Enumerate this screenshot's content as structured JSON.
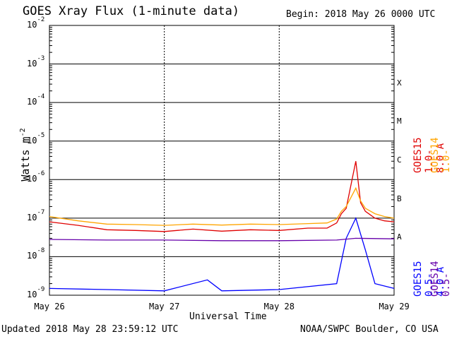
{
  "header": {
    "title": "GOES Xray Flux (1-minute data)",
    "begin": "Begin:  2018 May 26 0000 UTC"
  },
  "footer": {
    "updated": "Updated 2018 May 28 23:59:12 UTC",
    "credit": "NOAA/SWPC Boulder, CO USA"
  },
  "chart_data": {
    "type": "line",
    "title": "GOES Xray Flux (1-minute data)",
    "xlabel": "Universal Time",
    "ylabel": "Watts m",
    "ylabel_sup": "-2",
    "yscale": "log",
    "ylim": [
      1e-09,
      0.01
    ],
    "xlim": [
      "2018-05-26 00:00",
      "2018-05-29 00:00"
    ],
    "x_ticks": [
      "May 26",
      "May 27",
      "May 28",
      "May 29"
    ],
    "y_ticks": [
      {
        "base": "10",
        "exp": "-2",
        "value": 0.01
      },
      {
        "base": "10",
        "exp": "-3",
        "value": 0.001
      },
      {
        "base": "10",
        "exp": "-4",
        "value": 0.0001
      },
      {
        "base": "10",
        "exp": "-5",
        "value": 1e-05
      },
      {
        "base": "10",
        "exp": "-6",
        "value": 1e-06
      },
      {
        "base": "10",
        "exp": "-7",
        "value": 1e-07
      },
      {
        "base": "10",
        "exp": "-8",
        "value": 1e-08
      },
      {
        "base": "10",
        "exp": "-9",
        "value": 1e-09
      }
    ],
    "flare_classes": [
      {
        "label": "X",
        "value": 0.0001
      },
      {
        "label": "M",
        "value": 1e-05
      },
      {
        "label": "C",
        "value": 1e-06
      },
      {
        "label": "B",
        "value": 1e-07
      },
      {
        "label": "A",
        "value": 1e-08
      }
    ],
    "grid": "horizontal lines at each decade; dashed vertical lines at day boundaries",
    "series": [
      {
        "name": "GOES15 1.0-8.0 A",
        "color": "#e00000",
        "points": [
          [
            "2018-05-26 00:00",
            8e-08
          ],
          [
            "2018-05-26 06:00",
            6.5e-08
          ],
          [
            "2018-05-26 12:00",
            5e-08
          ],
          [
            "2018-05-26 18:00",
            4.8e-08
          ],
          [
            "2018-05-27 00:00",
            4.5e-08
          ],
          [
            "2018-05-27 06:00",
            5.2e-08
          ],
          [
            "2018-05-27 12:00",
            4.6e-08
          ],
          [
            "2018-05-27 18:00",
            5e-08
          ],
          [
            "2018-05-28 00:00",
            4.8e-08
          ],
          [
            "2018-05-28 06:00",
            5.5e-08
          ],
          [
            "2018-05-28 10:00",
            5.5e-08
          ],
          [
            "2018-05-28 12:00",
            7.5e-08
          ],
          [
            "2018-05-28 13:00",
            1.3e-07
          ],
          [
            "2018-05-28 14:00",
            1.8e-07
          ],
          [
            "2018-05-28 16:00",
            3e-06
          ],
          [
            "2018-05-28 17:00",
            2.5e-07
          ],
          [
            "2018-05-28 18:00",
            1.5e-07
          ],
          [
            "2018-05-28 20:00",
            1e-07
          ],
          [
            "2018-05-28 22:00",
            8.5e-08
          ],
          [
            "2018-05-29 00:00",
            8e-08
          ]
        ]
      },
      {
        "name": "GOES14 1.0-8.0 A",
        "color": "#ffa500",
        "points": [
          [
            "2018-05-26 00:00",
            1.1e-07
          ],
          [
            "2018-05-26 06:00",
            8.5e-08
          ],
          [
            "2018-05-26 12:00",
            7e-08
          ],
          [
            "2018-05-26 18:00",
            6.8e-08
          ],
          [
            "2018-05-27 00:00",
            6.5e-08
          ],
          [
            "2018-05-27 06:00",
            7e-08
          ],
          [
            "2018-05-27 12:00",
            6.6e-08
          ],
          [
            "2018-05-27 18:00",
            7e-08
          ],
          [
            "2018-05-28 00:00",
            6.8e-08
          ],
          [
            "2018-05-28 06:00",
            7.2e-08
          ],
          [
            "2018-05-28 10:00",
            7.5e-08
          ],
          [
            "2018-05-28 12:00",
            9.5e-08
          ],
          [
            "2018-05-28 13:00",
            1.5e-07
          ],
          [
            "2018-05-28 14:00",
            2e-07
          ],
          [
            "2018-05-28 16:00",
            6e-07
          ],
          [
            "2018-05-28 17:00",
            2.8e-07
          ],
          [
            "2018-05-28 18:00",
            1.8e-07
          ],
          [
            "2018-05-28 20:00",
            1.3e-07
          ],
          [
            "2018-05-28 22:00",
            1.1e-07
          ],
          [
            "2018-05-29 00:00",
            1e-07
          ]
        ]
      },
      {
        "name": "GOES15 0.5-4.0 A",
        "color": "#0000ff",
        "points": [
          [
            "2018-05-26 00:00",
            1.5e-09
          ],
          [
            "2018-05-26 12:00",
            1.4e-09
          ],
          [
            "2018-05-27 00:00",
            1.3e-09
          ],
          [
            "2018-05-27 09:00",
            2.5e-09
          ],
          [
            "2018-05-27 12:00",
            1.3e-09
          ],
          [
            "2018-05-28 00:00",
            1.4e-09
          ],
          [
            "2018-05-28 12:00",
            2e-09
          ],
          [
            "2018-05-28 14:00",
            3e-08
          ],
          [
            "2018-05-28 16:00",
            1e-07
          ],
          [
            "2018-05-28 18:00",
            1.5e-08
          ],
          [
            "2018-05-28 20:00",
            2e-09
          ],
          [
            "2018-05-29 00:00",
            1.5e-09
          ]
        ]
      },
      {
        "name": "GOES14 0.5-4.0 A",
        "color": "#6600aa",
        "points": [
          [
            "2018-05-26 00:00",
            2.8e-08
          ],
          [
            "2018-05-26 12:00",
            2.7e-08
          ],
          [
            "2018-05-27 00:00",
            2.7e-08
          ],
          [
            "2018-05-27 12:00",
            2.6e-08
          ],
          [
            "2018-05-28 00:00",
            2.6e-08
          ],
          [
            "2018-05-28 12:00",
            2.7e-08
          ],
          [
            "2018-05-28 16:00",
            3e-08
          ],
          [
            "2018-05-29 00:00",
            2.9e-08
          ]
        ]
      }
    ]
  }
}
